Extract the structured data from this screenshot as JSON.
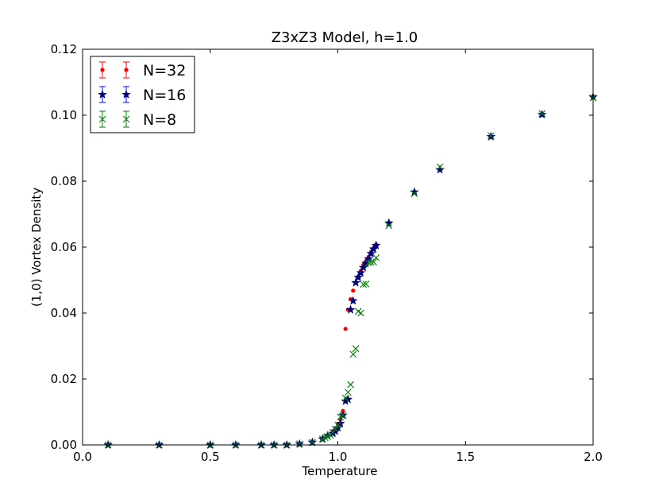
{
  "chart_data": {
    "type": "scatter",
    "title": "Z3xZ3 Model, h=1.0",
    "xlabel": "Temperature",
    "ylabel": "(1,0) Vortex Density",
    "xlim": [
      0.0,
      2.0
    ],
    "ylim": [
      0.0,
      0.12
    ],
    "xticks": [
      "0.0",
      "0.5",
      "1.0",
      "1.5",
      "2.0"
    ],
    "yticks": [
      "0.00",
      "0.02",
      "0.04",
      "0.06",
      "0.08",
      "0.10",
      "0.12"
    ],
    "grid": false,
    "legend_position": "top-left",
    "series": [
      {
        "name": "N=32",
        "color": "#ff0000",
        "marker": "dot",
        "x": [
          0.1,
          0.3,
          0.5,
          0.6,
          0.7,
          0.75,
          0.8,
          0.85,
          0.9,
          0.94,
          0.96,
          0.98,
          0.99,
          1.0,
          1.01,
          1.02,
          1.03,
          1.04,
          1.05,
          1.06,
          1.07,
          1.08,
          1.09,
          1.1,
          1.11,
          1.12,
          1.13,
          1.14,
          1.15,
          1.2,
          1.3,
          1.4,
          1.6,
          1.8,
          2.0
        ],
        "y": [
          0.0,
          0.0,
          0.0,
          0.0,
          0.0,
          0.0,
          0.0,
          0.0003,
          0.0008,
          0.0018,
          0.0028,
          0.0038,
          0.0048,
          0.0062,
          0.0078,
          0.0103,
          0.0352,
          0.041,
          0.0442,
          0.0468,
          0.0492,
          0.051,
          0.0528,
          0.0546,
          0.0558,
          0.057,
          0.0585,
          0.0597,
          0.0608,
          0.0673,
          0.0765,
          0.0836,
          0.0935,
          0.1003,
          0.1055
        ]
      },
      {
        "name": "N=16",
        "color": "#0000ff",
        "marker": "star",
        "x": [
          0.1,
          0.3,
          0.5,
          0.6,
          0.7,
          0.75,
          0.8,
          0.85,
          0.9,
          0.94,
          0.96,
          0.98,
          0.99,
          1.0,
          1.01,
          1.02,
          1.03,
          1.04,
          1.05,
          1.06,
          1.07,
          1.08,
          1.09,
          1.1,
          1.11,
          1.12,
          1.13,
          1.14,
          1.15,
          1.2,
          1.3,
          1.4,
          1.6,
          1.8,
          2.0
        ],
        "y": [
          0.0,
          0.0,
          0.0,
          0.0,
          0.0,
          0.0,
          0.0,
          0.0003,
          0.0008,
          0.0018,
          0.0028,
          0.0035,
          0.0042,
          0.0052,
          0.0065,
          0.009,
          0.0133,
          0.0138,
          0.041,
          0.0437,
          0.0492,
          0.0508,
          0.0522,
          0.0538,
          0.0551,
          0.0564,
          0.058,
          0.0594,
          0.0605,
          0.0673,
          0.0767,
          0.0835,
          0.0935,
          0.1002,
          0.1055
        ]
      },
      {
        "name": "N=8",
        "color": "#008000",
        "marker": "x",
        "x": [
          0.1,
          0.3,
          0.5,
          0.6,
          0.7,
          0.75,
          0.8,
          0.85,
          0.9,
          0.94,
          0.95,
          0.96,
          0.97,
          0.98,
          0.99,
          1.0,
          1.01,
          1.02,
          1.03,
          1.04,
          1.05,
          1.06,
          1.07,
          1.08,
          1.09,
          1.1,
          1.11,
          1.12,
          1.13,
          1.14,
          1.15,
          1.2,
          1.3,
          1.4,
          1.6,
          1.8,
          2.0
        ],
        "y": [
          0.0,
          0.0,
          0.0,
          0.0,
          0.0,
          0.0,
          0.0,
          0.0003,
          0.0008,
          0.0018,
          0.0022,
          0.0025,
          0.003,
          0.0038,
          0.0048,
          0.006,
          0.0085,
          0.009,
          0.0142,
          0.016,
          0.0183,
          0.0275,
          0.0292,
          0.0405,
          0.04,
          0.0487,
          0.0488,
          0.0552,
          0.0554,
          0.0555,
          0.0568,
          0.0665,
          0.0762,
          0.0843,
          0.0938,
          0.1005,
          0.1053
        ]
      }
    ]
  }
}
